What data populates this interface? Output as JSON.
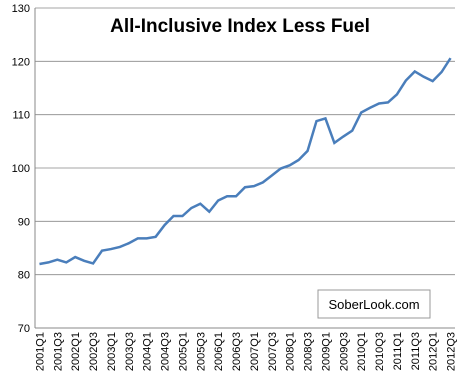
{
  "chart_data": {
    "type": "line",
    "title": "All-Inclusive Index Less Fuel",
    "annotation": "SoberLook.com",
    "categories": [
      "2001Q1",
      null,
      "2001Q3",
      null,
      "2002Q1",
      null,
      "2002Q3",
      null,
      "2003Q1",
      null,
      "2003Q3",
      null,
      "2004Q1",
      null,
      "2004Q3",
      null,
      "2005Q1",
      null,
      "2005Q3",
      null,
      "2006Q1",
      null,
      "2006Q3",
      null,
      "2007Q1",
      null,
      "2007Q3",
      null,
      "2008Q1",
      null,
      "2008Q3",
      null,
      "2009Q1",
      null,
      "2009Q3",
      null,
      "2010Q1",
      null,
      "2010Q3",
      null,
      "2011Q1",
      null,
      "2011Q3",
      null,
      "2012Q1",
      null,
      "2012Q3"
    ],
    "values": [
      82,
      82.3,
      82.8,
      82.3,
      83.3,
      82.6,
      82.1,
      84.5,
      84.8,
      85.2,
      85.9,
      86.8,
      86.8,
      87.1,
      89.3,
      91.0,
      91.0,
      92.5,
      93.3,
      91.8,
      93.9,
      94.7,
      94.7,
      96.4,
      96.6,
      97.3,
      98.6,
      99.9,
      100.5,
      101.5,
      103.2,
      108.8,
      109.3,
      104.7,
      105.9,
      107.0,
      110.4,
      111.3,
      112.1,
      112.3,
      113.8,
      116.4,
      118.1,
      117.1,
      116.3,
      118.0,
      120.6
    ],
    "color": "#4a7ebb",
    "ylim": [
      70,
      130
    ],
    "yticks": [
      70,
      80,
      90,
      100,
      110,
      120,
      130
    ],
    "grid": true
  }
}
